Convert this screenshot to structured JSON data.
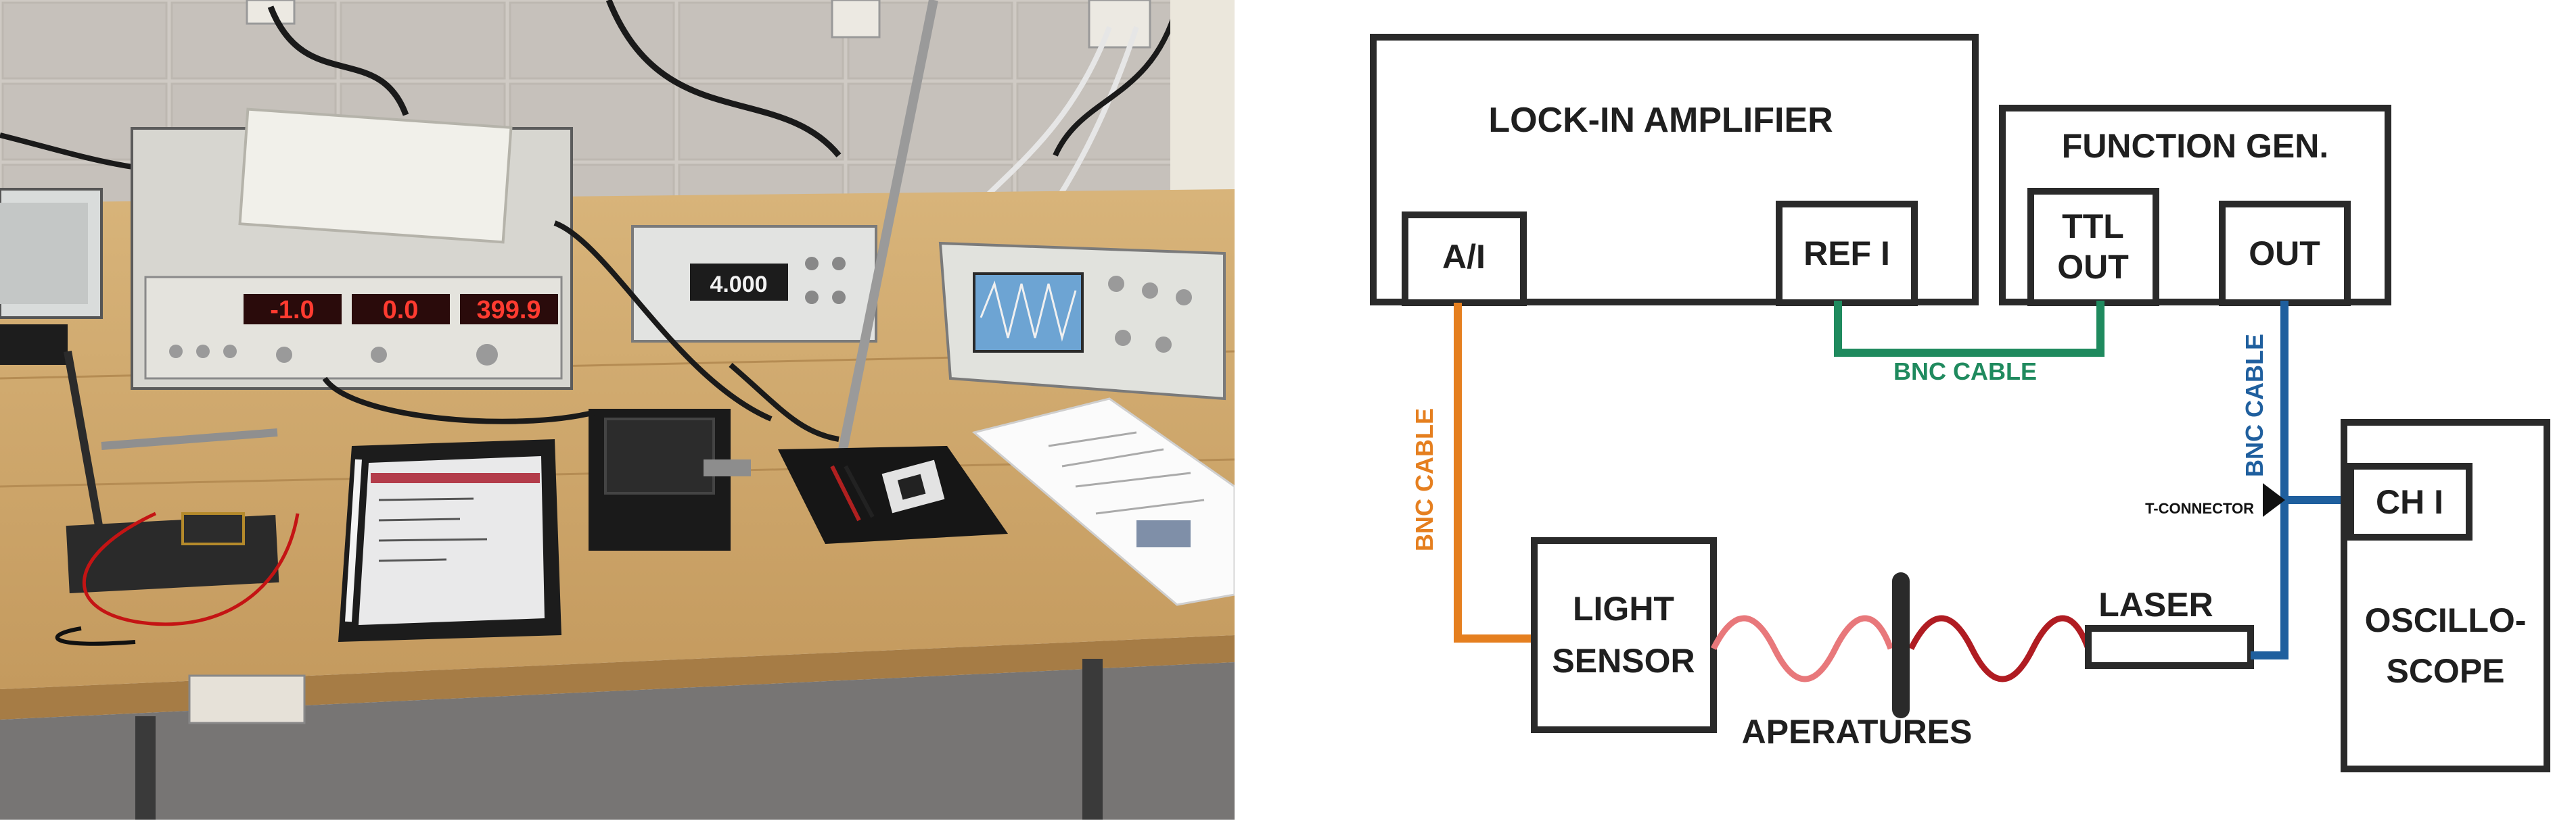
{
  "photo": {
    "lockin_display_1": "-1.0",
    "lockin_display_2": "0.0",
    "lockin_display_3": "399.9",
    "funcgen_display": "4.000"
  },
  "diagram": {
    "lock_in_amplifier": "LOCK-IN AMPLIFIER",
    "lock_in_input": "A/I",
    "lock_in_ref": "REF I",
    "function_gen": "FUNCTION GEN.",
    "ttl_line1": "TTL",
    "ttl_line2": "OUT",
    "fg_out": "OUT",
    "light_sensor_line1": "LIGHT",
    "light_sensor_line2": "SENSOR",
    "laser": "LASER",
    "apertures": "APERATURES",
    "oscilloscope_line1": "OSCILLO-",
    "oscilloscope_line2": "SCOPE",
    "ch1": "CH I",
    "t_connector": "T-CONNECTOR",
    "cable_orange": "BNC CABLE",
    "cable_green": "BNC CABLE",
    "cable_blue": "BNC CABLE",
    "colors": {
      "orange": "#e57f1f",
      "green": "#1f8a5e",
      "blue": "#1f5f9e",
      "wave_light": "#e8787b",
      "wave_dark": "#b01c22",
      "outline": "#2a2a2a"
    }
  }
}
